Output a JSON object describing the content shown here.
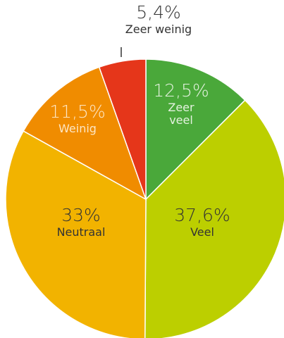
{
  "chart_data": {
    "type": "pie",
    "categories": [
      "Zeer veel",
      "Veel",
      "Neutraal",
      "Weinig",
      "Zeer weinig"
    ],
    "values": [
      12.5,
      37.6,
      33,
      11.5,
      5.4
    ],
    "value_labels": [
      "12,5%",
      "37,6%",
      "33%",
      "11,5%",
      "5,4%"
    ],
    "colors": [
      "#4aa83a",
      "#bccf00",
      "#f2b300",
      "#f08c00",
      "#e5361a"
    ]
  }
}
